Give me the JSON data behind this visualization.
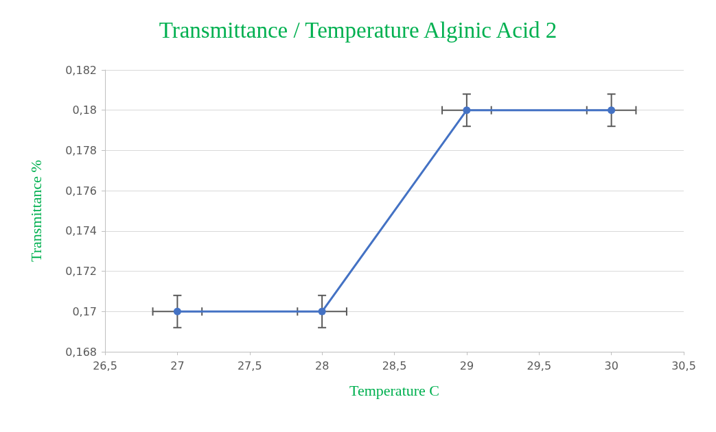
{
  "chart_data": {
    "type": "line",
    "title": "Transmittance / Temperature Alginic Acid 2",
    "xlabel": "Temperature C",
    "ylabel": "Transmittance %",
    "x": [
      27,
      28,
      29,
      30
    ],
    "series": [
      {
        "color": "#4472c4",
        "values": [
          0.17,
          0.17,
          0.18,
          0.18
        ],
        "errors": [
          0.0008,
          0.0008,
          0.0008,
          0.0008
        ],
        "xerrors": [
          0.17,
          0.17,
          0.17,
          0.17
        ]
      }
    ],
    "xlim": [
      26.5,
      30.5
    ],
    "xticks": [
      {
        "value": 26.5,
        "label": "26,5"
      },
      27,
      {
        "value": 27.5,
        "label": "27,5"
      },
      28,
      {
        "value": 28.5,
        "label": "28,5"
      },
      29,
      {
        "value": 29.5,
        "label": "29,5"
      },
      30,
      {
        "value": 30.5,
        "label": "30,5"
      }
    ],
    "ylim": [
      0.168,
      0.182
    ],
    "yticks": [
      {
        "value": 0.168,
        "label": "0,168"
      },
      {
        "value": 0.17,
        "label": "0,17"
      },
      {
        "value": 0.172,
        "label": "0,172"
      },
      {
        "value": 0.174,
        "label": "0,174"
      },
      {
        "value": 0.176,
        "label": "0,176"
      },
      {
        "value": 0.178,
        "label": "0,178"
      },
      {
        "value": 0.18,
        "label": "0,18"
      },
      {
        "value": 0.182,
        "label": "0,182"
      }
    ],
    "grid": "y",
    "marker": "circle",
    "line_style": "solid"
  }
}
